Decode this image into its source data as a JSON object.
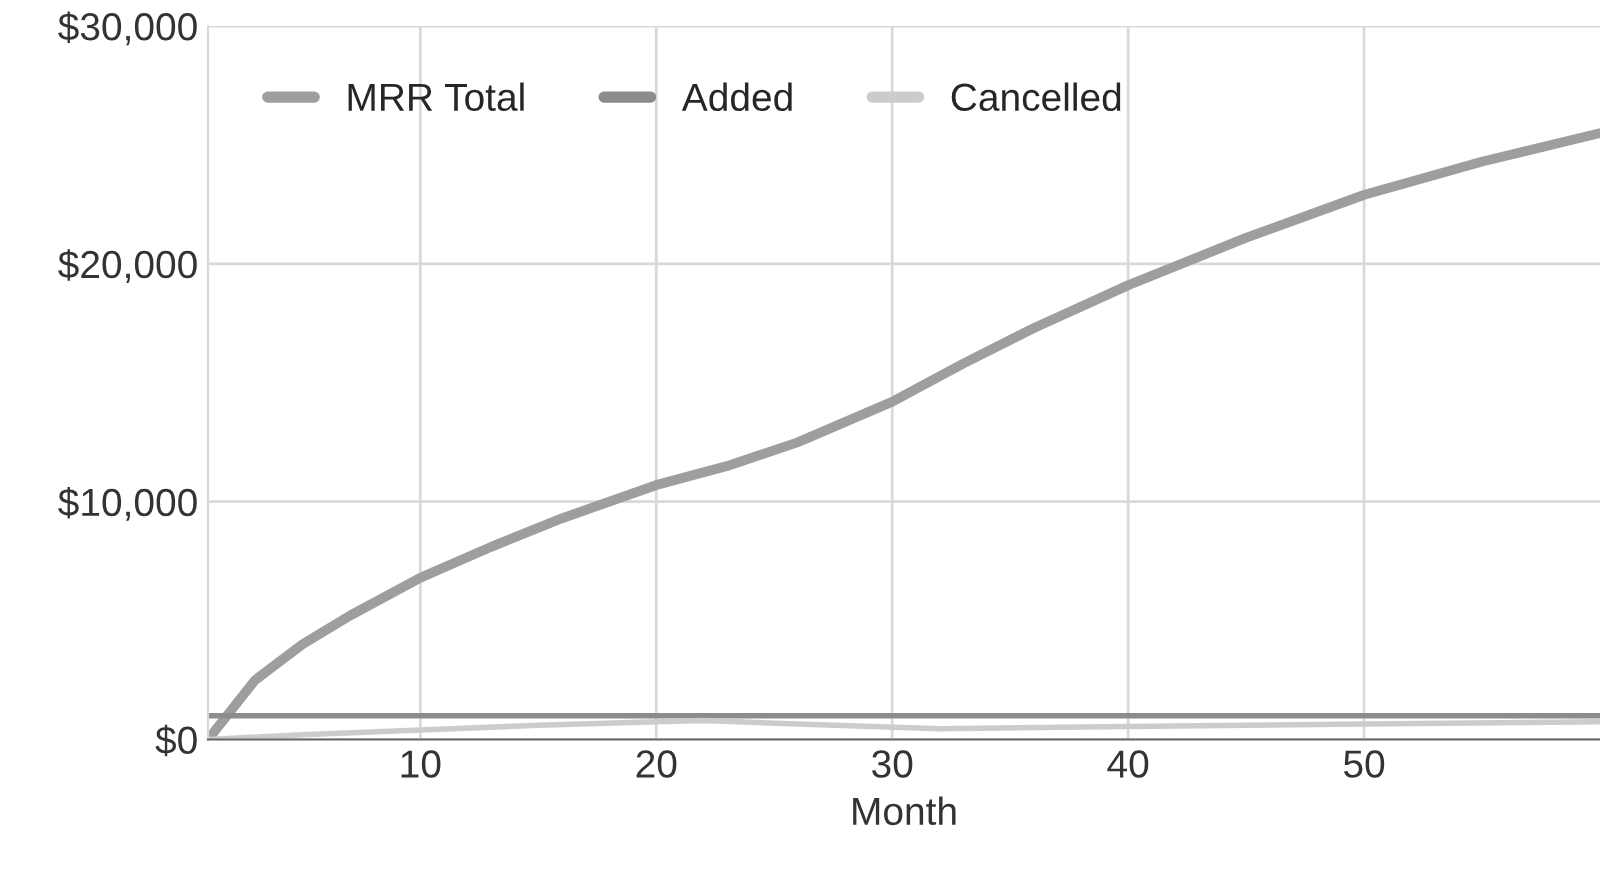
{
  "chart_data": {
    "type": "line",
    "xlabel": "Month",
    "xlim": [
      1,
      60
    ],
    "xticks": [
      10,
      20,
      30,
      40,
      50
    ],
    "ylim": [
      0,
      30000
    ],
    "yticks": [
      {
        "value": 0,
        "label": "$0"
      },
      {
        "value": 10000,
        "label": "$10,000"
      },
      {
        "value": 20000,
        "label": "$20,000"
      },
      {
        "value": 30000,
        "label": "$30,000"
      }
    ],
    "grid": true,
    "legend": "top",
    "marker": "none",
    "line_style": "solid",
    "series": [
      {
        "name": "MRR Total",
        "color": "#9e9e9e",
        "x": [
          1,
          3,
          5,
          7,
          10,
          13,
          16,
          20,
          23,
          26,
          30,
          33,
          36,
          40,
          45,
          50,
          55,
          60
        ],
        "values": [
          0,
          2500,
          4000,
          5200,
          6800,
          8100,
          9300,
          10700,
          11500,
          12500,
          14200,
          15800,
          17300,
          19100,
          21100,
          22900,
          24300,
          25500
        ]
      },
      {
        "name": "Added",
        "color": "#8c8c8c",
        "x": [
          1,
          60
        ],
        "values": [
          1000,
          1000
        ]
      },
      {
        "name": "Cancelled",
        "color": "#cccccc",
        "x": [
          1,
          5,
          10,
          15,
          20,
          22,
          26,
          32,
          40,
          50,
          60
        ],
        "values": [
          0,
          200,
          400,
          600,
          750,
          800,
          650,
          450,
          550,
          650,
          750
        ]
      }
    ]
  }
}
